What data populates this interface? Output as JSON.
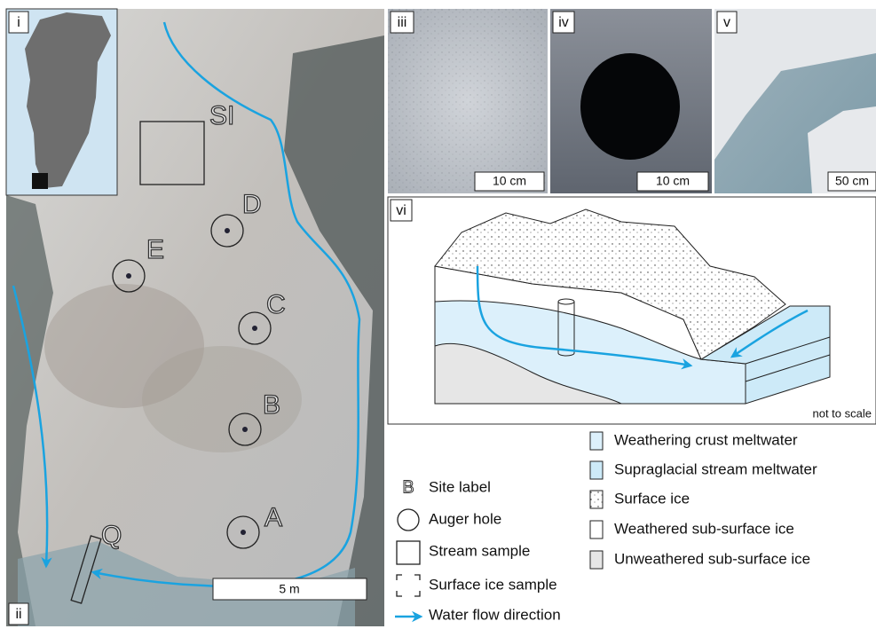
{
  "panel_labels": [
    "i",
    "ii",
    "iii",
    "iv",
    "v",
    "vi"
  ],
  "site_labels": [
    "SI",
    "D",
    "E",
    "C",
    "B",
    "A",
    "Q"
  ],
  "scale_bars": [
    "5 m",
    "10 cm",
    "10 cm",
    "50 cm"
  ],
  "diagram_note": "not to scale",
  "legend": {
    "symbol_text": "B",
    "left": [
      "Site label",
      "Auger hole",
      "Stream sample",
      "Surface ice sample",
      "Water flow direction"
    ],
    "right": [
      "Weathering crust meltwater",
      "Supraglacial stream meltwater",
      "Surface ice",
      "Weathered sub-surface ice",
      "Unweathered sub-surface ice"
    ]
  }
}
